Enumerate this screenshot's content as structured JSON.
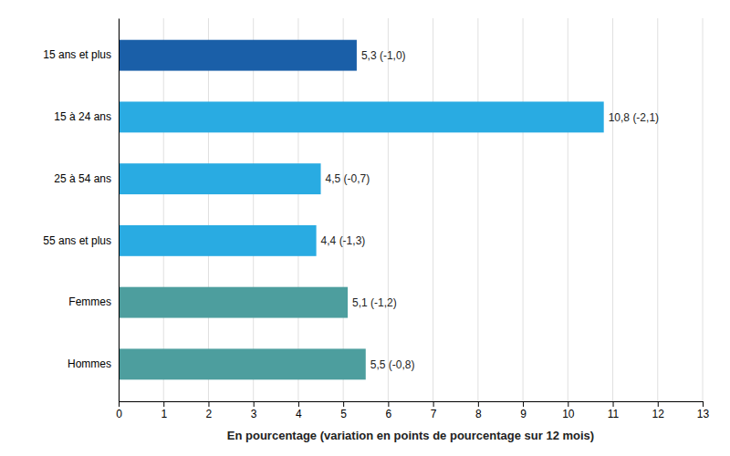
{
  "chart_data": {
    "type": "bar",
    "orientation": "horizontal",
    "categories": [
      "15 ans et plus",
      "15 à 24 ans",
      "25 à 54 ans",
      "55 ans et plus",
      "Femmes",
      "Hommes"
    ],
    "values": [
      5.3,
      10.8,
      4.5,
      4.4,
      5.1,
      5.5
    ],
    "value_labels": [
      "5,3 (-1,0)",
      "10,8 (-2,1)",
      "4,5 (-0,7)",
      "4,4 (-1,3)",
      "5,1 (-1,2)",
      "5,5 (-0,8)"
    ],
    "data_labels": true,
    "colors": [
      "#1a5fa8",
      "#29abe2",
      "#29abe2",
      "#29abe2",
      "#4d9e9e",
      "#4d9e9e"
    ],
    "xlabel": "En pourcentage (variation en points de pourcentage sur 12 mois)",
    "xlim": [
      0,
      13
    ],
    "xticks": [
      0,
      1,
      2,
      3,
      4,
      5,
      6,
      7,
      8,
      9,
      10,
      11,
      12,
      13
    ],
    "grid": true
  }
}
